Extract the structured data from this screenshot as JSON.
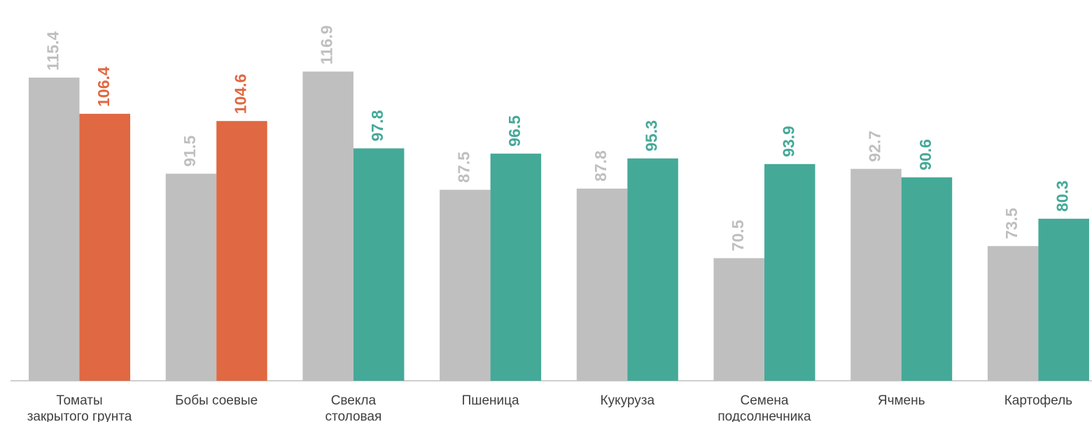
{
  "chart_data": {
    "type": "bar",
    "categories": [
      "Томаты\nзакрытого грунта",
      "Бобы соевые",
      "Свекла\nстоловая",
      "Пшеница",
      "Кукуруза",
      "Семена\nподсолнечника",
      "Ячмень",
      "Картофель"
    ],
    "series": [
      {
        "color": "#bfbfbf",
        "values": [
          115.4,
          91.5,
          116.9,
          87.5,
          87.8,
          70.5,
          92.7,
          73.5
        ]
      },
      {
        "colors": [
          "#e06842",
          "#e06842",
          "#45a998",
          "#45a998",
          "#45a998",
          "#45a998",
          "#45a998",
          "#45a998"
        ],
        "values": [
          106.4,
          104.6,
          97.8,
          96.5,
          95.3,
          93.9,
          90.6,
          80.3
        ]
      }
    ],
    "ylim": [
      40,
      134.7
    ]
  }
}
